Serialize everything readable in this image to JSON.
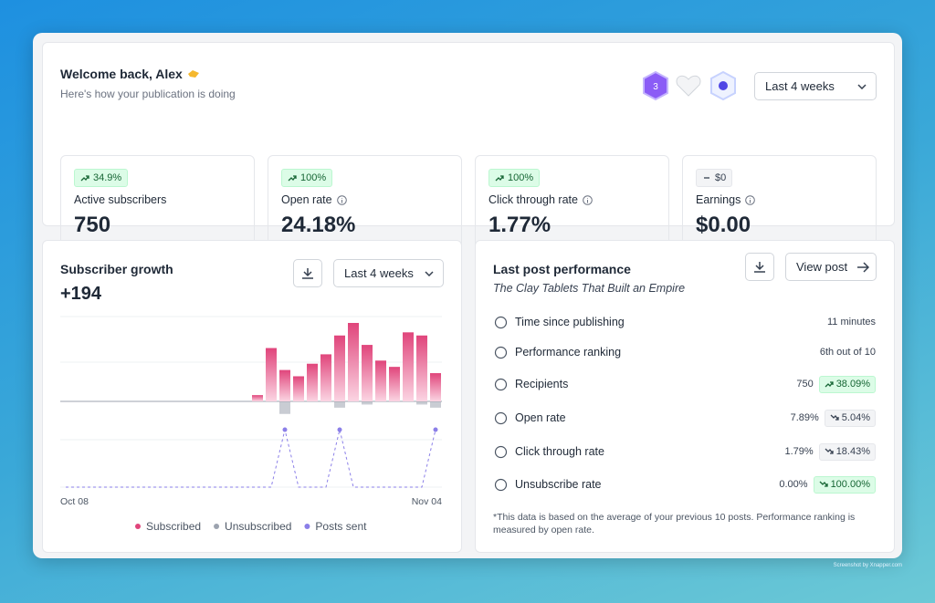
{
  "header": {
    "title": "Welcome back, Alex",
    "subtitle": "Here's how your publication is doing",
    "badge": "3",
    "period": "Last 4 weeks"
  },
  "stats": [
    {
      "change": "34.9%",
      "trend": "up",
      "label": "Active subscribers",
      "value": "750",
      "info": false
    },
    {
      "change": "100%",
      "trend": "up",
      "label": "Open rate",
      "value": "24.18%",
      "info": true
    },
    {
      "change": "100%",
      "trend": "up",
      "label": "Click through rate",
      "value": "1.77%",
      "info": true
    },
    {
      "change": "$0",
      "trend": "flat",
      "label": "Earnings",
      "value": "$0.00",
      "info": true
    }
  ],
  "growth": {
    "title": "Subscriber growth",
    "total": "+194",
    "period": "Last 4 weeks"
  },
  "chart_data": {
    "type": "bar",
    "categories": [
      "Oct 08",
      null,
      null,
      null,
      null,
      null,
      null,
      null,
      null,
      null,
      null,
      null,
      null,
      null,
      null,
      null,
      null,
      null,
      null,
      null,
      null,
      null,
      null,
      null,
      null,
      null,
      null,
      "Nov 04"
    ],
    "series": [
      {
        "name": "Subscribed",
        "color": "#e0457b",
        "values": [
          0,
          0,
          0,
          0,
          0,
          0,
          0,
          0,
          0,
          0,
          0,
          0,
          0,
          0,
          2,
          17,
          10,
          8,
          12,
          15,
          21,
          25,
          18,
          13,
          11,
          22,
          21,
          9
        ]
      },
      {
        "name": "Unsubscribed",
        "color": "#9ca3af",
        "values": [
          0,
          0,
          0,
          0,
          0,
          0,
          0,
          0,
          0,
          0,
          0,
          0,
          0,
          0,
          0,
          0,
          4,
          0,
          0,
          0,
          2,
          0,
          1,
          0,
          0,
          0,
          1,
          2
        ]
      },
      {
        "name": "Posts sent",
        "color": "#8b7fe8",
        "type": "line",
        "values": [
          0,
          0,
          0,
          0,
          0,
          0,
          0,
          0,
          0,
          0,
          0,
          0,
          0,
          0,
          0,
          0,
          1,
          0,
          0,
          0,
          1,
          0,
          0,
          0,
          0,
          0,
          0,
          1
        ]
      }
    ]
  },
  "post": {
    "title": "Last post performance",
    "post_title": "The Clay Tablets That Built an Empire",
    "view": "View post",
    "rows": [
      {
        "label": "Time since publishing",
        "value": "11 minutes"
      },
      {
        "label": "Performance ranking",
        "value": "6th out of 10"
      },
      {
        "label": "Recipients",
        "value": "750",
        "change": "38.09%",
        "trend": "up",
        "tone": "good"
      },
      {
        "label": "Open rate",
        "value": "7.89%",
        "change": "5.04%",
        "trend": "down",
        "tone": "neutral"
      },
      {
        "label": "Click through rate",
        "value": "1.79%",
        "change": "18.43%",
        "trend": "down",
        "tone": "neutral"
      },
      {
        "label": "Unsubscribe rate",
        "value": "0.00%",
        "change": "100.00%",
        "trend": "down",
        "tone": "good"
      }
    ],
    "footnote": "*This data is based on the average of your previous 10 posts. Performance ranking is measured by open rate."
  },
  "watermark": "Screenshot by Xnapper.com"
}
